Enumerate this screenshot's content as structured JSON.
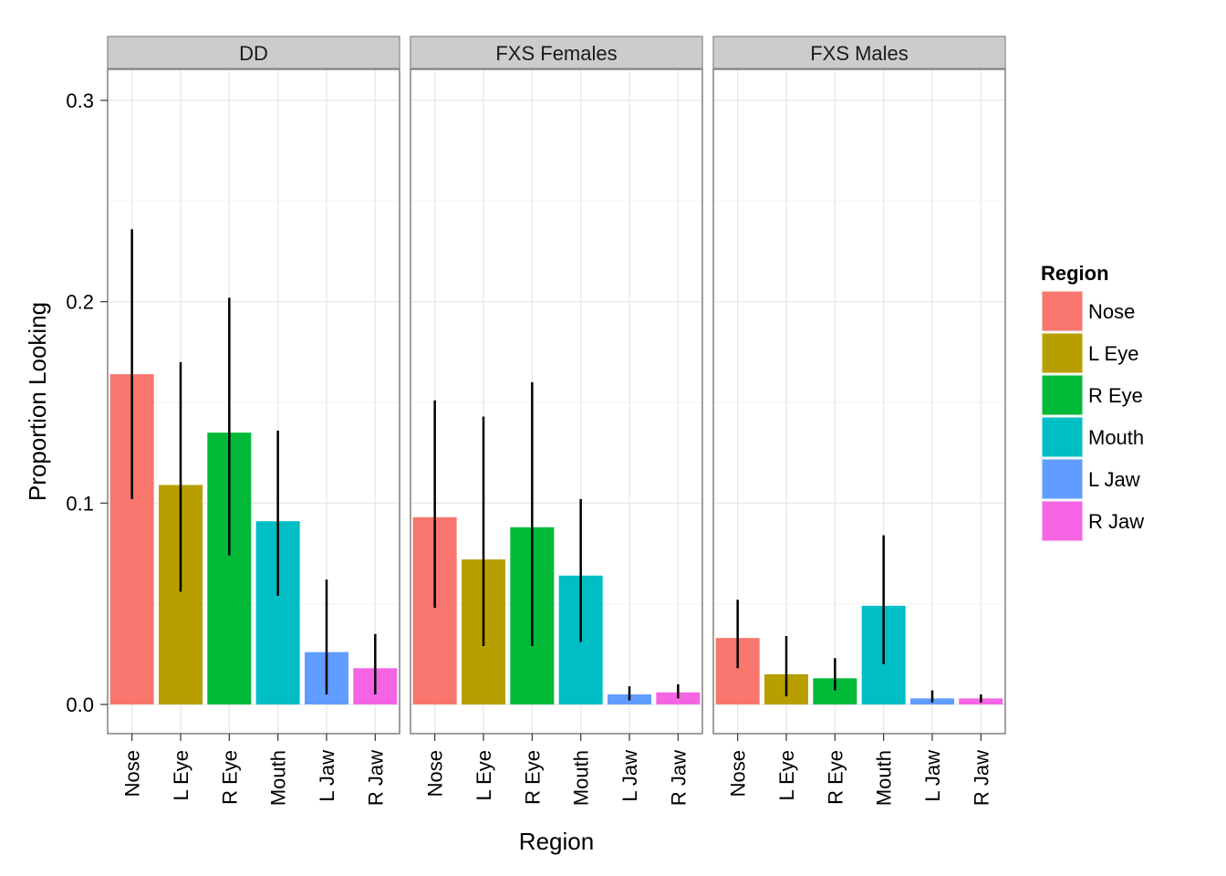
{
  "chart_data": {
    "type": "bar",
    "xlabel": "Region",
    "ylabel": "Proportion Looking",
    "ylim": [
      -0.015,
      0.3
    ],
    "yticks": [
      "0.0",
      "0.1",
      "0.2",
      "0.3"
    ],
    "ytick_values": [
      0,
      0.1,
      0.2,
      0.3
    ],
    "grid": true,
    "legend_position": "right",
    "legend_title": "Region",
    "categories": [
      "Nose",
      "L Eye",
      "R Eye",
      "Mouth",
      "L Jaw",
      "R Jaw"
    ],
    "colors": [
      "#F8766D",
      "#B79F00",
      "#00BA38",
      "#00BFC4",
      "#619CFF",
      "#F564E3"
    ],
    "panels": [
      {
        "name": "DD",
        "values": [
          0.164,
          0.109,
          0.135,
          0.091,
          0.026,
          0.018
        ],
        "err_low": [
          0.102,
          0.056,
          0.074,
          0.054,
          0.005,
          0.005
        ],
        "err_high": [
          0.236,
          0.17,
          0.202,
          0.136,
          0.062,
          0.035
        ]
      },
      {
        "name": "FXS Females",
        "values": [
          0.093,
          0.072,
          0.088,
          0.064,
          0.005,
          0.006
        ],
        "err_low": [
          0.048,
          0.029,
          0.029,
          0.031,
          0.002,
          0.003
        ],
        "err_high": [
          0.151,
          0.143,
          0.16,
          0.102,
          0.009,
          0.01
        ]
      },
      {
        "name": "FXS Males",
        "values": [
          0.033,
          0.015,
          0.013,
          0.049,
          0.003,
          0.003
        ],
        "err_low": [
          0.018,
          0.004,
          0.007,
          0.02,
          0.001,
          0.001
        ],
        "err_high": [
          0.052,
          0.034,
          0.023,
          0.084,
          0.007,
          0.005
        ]
      }
    ]
  }
}
